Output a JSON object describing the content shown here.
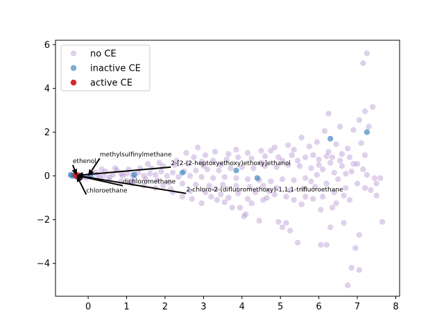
{
  "chart_data": {
    "type": "scatter",
    "title": "",
    "xlabel": "",
    "ylabel": "",
    "xlim": [
      -0.85,
      8.1
    ],
    "ylim": [
      -5.5,
      6.2
    ],
    "xticks": [
      0,
      1,
      2,
      3,
      4,
      5,
      6,
      7,
      8
    ],
    "yticks": [
      -4,
      -2,
      0,
      2,
      4,
      6
    ],
    "x_tick_labels": [
      "0",
      "1",
      "2",
      "3",
      "4",
      "5",
      "6",
      "7",
      "8"
    ],
    "y_tick_labels": [
      "−4",
      "−2",
      "0",
      "2",
      "4",
      "6"
    ],
    "grid": false,
    "legend_position": "upper-left",
    "series": [
      {
        "name": "no CE",
        "color": "#9467bd",
        "alpha": 0.3,
        "points": [
          [
            7.25,
            5.6
          ],
          [
            7.15,
            5.15
          ],
          [
            7.4,
            3.15
          ],
          [
            7.2,
            2.95
          ],
          [
            6.25,
            2.85
          ],
          [
            7.05,
            2.55
          ],
          [
            6.55,
            2.25
          ],
          [
            6.15,
            2.05
          ],
          [
            7.3,
            2.25
          ],
          [
            6.9,
            2.1
          ],
          [
            5.55,
            1.75
          ],
          [
            5.95,
            1.55
          ],
          [
            6.45,
            1.45
          ],
          [
            7.1,
            1.5
          ],
          [
            6.75,
            1.25
          ],
          [
            5.2,
            1.4
          ],
          [
            4.85,
            1.3
          ],
          [
            4.5,
            1.15
          ],
          [
            3.85,
            1.2
          ],
          [
            3.3,
            1.1
          ],
          [
            2.85,
            1.3
          ],
          [
            6.6,
            1.0
          ],
          [
            7.2,
            0.95
          ],
          [
            6.35,
            0.85
          ],
          [
            5.85,
            0.95
          ],
          [
            7.0,
            0.55
          ],
          [
            6.85,
            0.2
          ],
          [
            7.45,
            -0.1
          ],
          [
            7.6,
            -0.1
          ],
          [
            7.5,
            -0.35
          ],
          [
            7.35,
            -0.65
          ],
          [
            7.5,
            -0.9
          ],
          [
            7.65,
            -2.1
          ],
          [
            7.05,
            -2.7
          ],
          [
            6.95,
            -3.3
          ],
          [
            7.05,
            -4.3
          ],
          [
            6.85,
            -4.2
          ],
          [
            6.75,
            -5.0
          ],
          [
            6.65,
            -2.15
          ],
          [
            6.3,
            -2.35
          ],
          [
            6.2,
            -3.15
          ],
          [
            6.05,
            -3.15
          ],
          [
            5.45,
            -3.05
          ],
          [
            5.15,
            -2.15
          ],
          [
            5.25,
            -2.5
          ],
          [
            5.05,
            -2.35
          ],
          [
            4.95,
            -2.1
          ],
          [
            4.45,
            -2.05
          ],
          [
            4.1,
            -1.75
          ],
          [
            4.05,
            -1.85
          ],
          [
            3.95,
            -1.45
          ],
          [
            3.75,
            -1.45
          ],
          [
            3.35,
            -1.1
          ],
          [
            2.95,
            -1.25
          ],
          [
            2.7,
            -1.05
          ],
          [
            3.55,
            -1.2
          ],
          [
            4.25,
            -1.25
          ],
          [
            4.55,
            -1.1
          ],
          [
            5.55,
            -1.3
          ],
          [
            6.05,
            -1.55
          ],
          [
            6.35,
            -1.45
          ],
          [
            6.45,
            -1.25
          ],
          [
            6.8,
            -1.1
          ],
          [
            5.85,
            -1.05
          ],
          [
            5.35,
            -1.1
          ],
          [
            4.85,
            -0.85
          ],
          [
            4.35,
            -0.75
          ],
          [
            3.9,
            -0.8
          ],
          [
            3.45,
            -0.85
          ],
          [
            3.05,
            -0.75
          ],
          [
            2.45,
            -0.95
          ],
          [
            2.2,
            -0.75
          ],
          [
            1.75,
            -0.55
          ],
          [
            1.45,
            -0.45
          ],
          [
            1.15,
            -0.35
          ],
          [
            0.85,
            -0.25
          ],
          [
            0.55,
            -0.2
          ],
          [
            0.3,
            -0.1
          ],
          [
            0.1,
            -0.05
          ],
          [
            -0.05,
            -0.1
          ],
          [
            -0.2,
            0.05
          ],
          [
            0.2,
            0.15
          ],
          [
            0.45,
            0.2
          ],
          [
            0.75,
            0.25
          ],
          [
            1.05,
            0.3
          ],
          [
            1.35,
            0.35
          ],
          [
            1.65,
            0.35
          ],
          [
            1.95,
            0.45
          ],
          [
            2.25,
            0.5
          ],
          [
            2.6,
            0.55
          ],
          [
            2.95,
            0.65
          ],
          [
            3.25,
            0.7
          ],
          [
            3.6,
            0.75
          ],
          [
            3.9,
            0.85
          ],
          [
            4.25,
            0.8
          ],
          [
            4.6,
            0.9
          ],
          [
            4.95,
            0.85
          ],
          [
            5.3,
            0.95
          ],
          [
            5.65,
            0.85
          ],
          [
            6.0,
            0.75
          ],
          [
            6.3,
            0.6
          ],
          [
            6.6,
            0.45
          ],
          [
            6.7,
            0.1
          ],
          [
            6.5,
            -0.15
          ],
          [
            6.2,
            -0.35
          ],
          [
            5.9,
            -0.5
          ],
          [
            5.6,
            -0.6
          ],
          [
            5.25,
            -0.65
          ],
          [
            4.9,
            -0.55
          ],
          [
            4.55,
            -0.45
          ],
          [
            4.2,
            -0.5
          ],
          [
            3.85,
            -0.45
          ],
          [
            3.5,
            -0.4
          ],
          [
            3.15,
            -0.45
          ],
          [
            2.8,
            -0.4
          ],
          [
            2.45,
            -0.35
          ],
          [
            2.1,
            -0.3
          ],
          [
            1.8,
            -0.2
          ],
          [
            1.5,
            -0.15
          ],
          [
            1.2,
            -0.1
          ],
          [
            0.9,
            0.0
          ],
          [
            0.65,
            0.05
          ],
          [
            0.4,
            0.0
          ],
          [
            1.0,
            0.1
          ],
          [
            1.3,
            0.15
          ],
          [
            1.6,
            0.1
          ],
          [
            1.9,
            0.2
          ],
          [
            2.2,
            0.15
          ],
          [
            2.5,
            0.2
          ],
          [
            2.8,
            0.25
          ],
          [
            3.1,
            0.3
          ],
          [
            3.4,
            0.25
          ],
          [
            3.7,
            0.35
          ],
          [
            4.0,
            0.4
          ],
          [
            4.3,
            0.35
          ],
          [
            4.6,
            0.45
          ],
          [
            4.9,
            0.4
          ],
          [
            5.2,
            0.5
          ],
          [
            5.5,
            0.45
          ],
          [
            5.8,
            0.35
          ],
          [
            6.1,
            0.3
          ],
          [
            6.4,
            0.15
          ],
          [
            5.95,
            0.05
          ],
          [
            5.65,
            -0.1
          ],
          [
            5.35,
            -0.2
          ],
          [
            5.05,
            -0.15
          ],
          [
            4.75,
            -0.25
          ],
          [
            4.45,
            -0.2
          ],
          [
            4.15,
            -0.15
          ],
          [
            3.85,
            -0.1
          ],
          [
            3.55,
            -0.05
          ],
          [
            3.25,
            -0.1
          ],
          [
            2.95,
            -0.05
          ],
          [
            2.65,
            0.0
          ],
          [
            2.35,
            -0.05
          ],
          [
            2.05,
            0.0
          ],
          [
            1.75,
            0.05
          ],
          [
            1.45,
            0.0
          ],
          [
            1.15,
            0.05
          ],
          [
            0.85,
            0.1
          ],
          [
            0.55,
            -0.05
          ],
          [
            0.25,
            0.05
          ],
          [
            0.0,
            0.0
          ],
          [
            -0.15,
            -0.05
          ],
          [
            -0.3,
            0.02
          ],
          [
            -0.45,
            0.03
          ],
          [
            2.55,
            1.05
          ],
          [
            3.05,
            0.95
          ],
          [
            3.65,
            1.0
          ],
          [
            4.15,
            1.05
          ],
          [
            4.75,
            1.15
          ],
          [
            5.35,
            1.2
          ],
          [
            5.75,
            1.35
          ],
          [
            6.25,
            1.1
          ],
          [
            6.1,
            -0.95
          ],
          [
            5.65,
            -0.95
          ],
          [
            5.15,
            -0.95
          ],
          [
            4.65,
            -1.0
          ],
          [
            4.15,
            -1.05
          ],
          [
            3.65,
            -1.0
          ],
          [
            3.2,
            -0.95
          ],
          [
            2.65,
            -0.7
          ],
          [
            2.15,
            -0.6
          ],
          [
            1.95,
            -0.45
          ],
          [
            2.3,
            0.7
          ],
          [
            1.85,
            0.6
          ],
          [
            1.55,
            0.55
          ],
          [
            2.75,
            0.85
          ],
          [
            3.45,
            0.5
          ],
          [
            4.5,
            0.6
          ],
          [
            5.05,
            0.7
          ],
          [
            5.45,
            0.7
          ],
          [
            6.2,
            0.9
          ],
          [
            6.55,
            0.7
          ],
          [
            6.9,
            0.55
          ],
          [
            7.15,
            0.3
          ],
          [
            7.25,
            0.05
          ],
          [
            7.0,
            -0.35
          ],
          [
            6.7,
            -0.55
          ],
          [
            6.4,
            -0.75
          ],
          [
            6.65,
            -0.9
          ],
          [
            7.2,
            -0.55
          ],
          [
            1.1,
            -0.25
          ],
          [
            0.7,
            0.35
          ],
          [
            0.35,
            0.3
          ],
          [
            3.0,
            0.45
          ],
          [
            3.3,
            -0.6
          ],
          [
            4.7,
            -0.7
          ],
          [
            5.8,
            -0.25
          ],
          [
            6.0,
            0.5
          ],
          [
            6.8,
            0.85
          ]
        ]
      },
      {
        "name": "inactive CE",
        "color": "#1f77b4",
        "alpha": 0.6,
        "points": [
          [
            7.25,
            2.0
          ],
          [
            6.3,
            1.7
          ],
          [
            3.85,
            0.25
          ],
          [
            4.4,
            -0.1
          ],
          [
            2.45,
            0.15
          ],
          [
            1.2,
            0.05
          ],
          [
            -0.45,
            0.05
          ],
          [
            -0.4,
            0.0
          ],
          [
            -0.35,
            0.02
          ],
          [
            -0.3,
            -0.03
          ],
          [
            0.05,
            0.02
          ]
        ]
      },
      {
        "name": "active CE",
        "color": "#d62728",
        "alpha": 1.0,
        "points": [
          [
            -0.33,
            0.05
          ],
          [
            -0.31,
            0.0
          ],
          [
            -0.28,
            0.03
          ]
        ]
      }
    ],
    "annotations": [
      {
        "text": "methylsulfinylmethane",
        "xy": [
          0.0,
          0.0
        ],
        "xytext": [
          0.3,
          0.8
        ]
      },
      {
        "text": "ethenol",
        "xy": [
          -0.3,
          0.02
        ],
        "xytext": [
          -0.4,
          0.5
        ]
      },
      {
        "text": "2-[2-(2-heptoxyethoxy)ethoxy]ethanol",
        "xy": [
          -0.3,
          0.02
        ],
        "xytext": [
          2.15,
          0.4
        ]
      },
      {
        "text": "dichloromethane",
        "xy": [
          -0.3,
          0.02
        ],
        "xytext": [
          0.9,
          -0.45
        ]
      },
      {
        "text": "chloroethane",
        "xy": [
          -0.3,
          0.02
        ],
        "xytext": [
          -0.05,
          -0.85
        ]
      },
      {
        "text": "2-chloro-2-(difluoromethoxy)-1,1,1-trifluoroethane",
        "xy": [
          -0.3,
          0.02
        ],
        "xytext": [
          2.55,
          -0.8
        ]
      }
    ]
  }
}
